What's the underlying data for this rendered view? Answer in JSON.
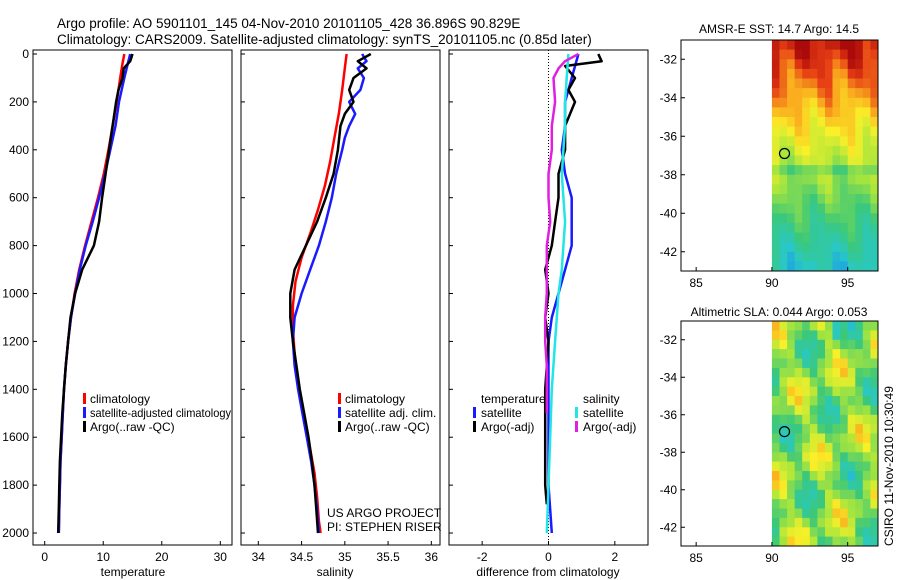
{
  "header": {
    "line1": "Argo profile: AO 5901101_145 04-Nov-2010 20101105_428 36.896S 90.829E",
    "line2": "Climatology: CARS2009. Satellite-adjusted climatology: synTS_20101105.nc (0.85d later)"
  },
  "side_credit": "CSIRO 11-Nov-2010 10:30:49",
  "project_note": {
    "line1": "US ARGO PROJECT",
    "line2": "PI: STEPHEN RISER"
  },
  "colors": {
    "red": "#ff0000",
    "blue": "#1a1aff",
    "black": "#000000",
    "cyan": "#22e5e5",
    "magenta": "#e020e0"
  },
  "chart_data": [
    {
      "type": "line",
      "xlabel": "temperature",
      "xlim": [
        -2,
        32
      ],
      "ylim": [
        0,
        2050
      ],
      "xticks": [
        0,
        10,
        20,
        30
      ],
      "yticks": [
        0,
        200,
        400,
        600,
        800,
        1000,
        1200,
        1400,
        1600,
        1800,
        2000
      ],
      "legend": [
        "climatology",
        "satellite-adjusted climatology",
        "Argo(..raw -QC)"
      ],
      "series": [
        {
          "color": "red",
          "points": [
            [
              13.6,
              0
            ],
            [
              13.3,
              40
            ],
            [
              12.9,
              100
            ],
            [
              12.3,
              200
            ],
            [
              11.6,
              300
            ],
            [
              10.9,
              400
            ],
            [
              10.1,
              500
            ],
            [
              9.1,
              600
            ],
            [
              8.0,
              700
            ],
            [
              6.9,
              800
            ],
            [
              5.9,
              900
            ],
            [
              5.1,
              1000
            ],
            [
              4.5,
              1100
            ],
            [
              4.0,
              1200
            ],
            [
              3.6,
              1300
            ],
            [
              3.3,
              1400
            ],
            [
              3.1,
              1500
            ],
            [
              2.9,
              1600
            ],
            [
              2.7,
              1700
            ],
            [
              2.6,
              1800
            ],
            [
              2.5,
              1900
            ],
            [
              2.4,
              2000
            ]
          ]
        },
        {
          "color": "blue",
          "points": [
            [
              14.6,
              0
            ],
            [
              14.2,
              40
            ],
            [
              13.6,
              100
            ],
            [
              12.7,
              200
            ],
            [
              12.1,
              300
            ],
            [
              11.2,
              400
            ],
            [
              10.3,
              500
            ],
            [
              9.3,
              600
            ],
            [
              8.2,
              700
            ],
            [
              7.0,
              800
            ],
            [
              6.0,
              900
            ],
            [
              5.2,
              1000
            ],
            [
              4.5,
              1100
            ],
            [
              4.0,
              1200
            ],
            [
              3.6,
              1300
            ],
            [
              3.3,
              1400
            ],
            [
              3.1,
              1500
            ],
            [
              2.9,
              1600
            ],
            [
              2.7,
              1700
            ],
            [
              2.6,
              1800
            ],
            [
              2.5,
              1900
            ],
            [
              2.4,
              2000
            ]
          ]
        },
        {
          "color": "black",
          "points": [
            [
              15.0,
              0
            ],
            [
              14.6,
              30
            ],
            [
              13.5,
              60
            ],
            [
              13.3,
              100
            ],
            [
              12.6,
              150
            ],
            [
              12.2,
              200
            ],
            [
              11.6,
              300
            ],
            [
              11.0,
              400
            ],
            [
              10.4,
              500
            ],
            [
              9.8,
              600
            ],
            [
              9.3,
              700
            ],
            [
              8.4,
              800
            ],
            [
              6.4,
              900
            ],
            [
              5.2,
              1000
            ],
            [
              4.4,
              1100
            ],
            [
              4.0,
              1200
            ],
            [
              3.6,
              1300
            ],
            [
              3.3,
              1400
            ],
            [
              3.0,
              1500
            ],
            [
              2.8,
              1600
            ],
            [
              2.6,
              1700
            ],
            [
              2.5,
              1800
            ],
            [
              2.4,
              1900
            ],
            [
              2.3,
              2000
            ]
          ]
        }
      ]
    },
    {
      "type": "line",
      "xlabel": "salinity",
      "xlim": [
        33.8,
        36.1
      ],
      "ylim": [
        0,
        2050
      ],
      "xticks": [
        34,
        34.5,
        35,
        35.5,
        36
      ],
      "legend": [
        "climatology",
        "satellite adj. clim.",
        "Argo(..raw -QC)"
      ],
      "series": [
        {
          "color": "red",
          "points": [
            [
              35.02,
              0
            ],
            [
              35.0,
              60
            ],
            [
              34.97,
              150
            ],
            [
              34.93,
              250
            ],
            [
              34.88,
              350
            ],
            [
              34.83,
              450
            ],
            [
              34.77,
              550
            ],
            [
              34.69,
              650
            ],
            [
              34.6,
              750
            ],
            [
              34.5,
              850
            ],
            [
              34.43,
              950
            ],
            [
              34.4,
              1050
            ],
            [
              34.4,
              1150
            ],
            [
              34.42,
              1250
            ],
            [
              34.45,
              1350
            ],
            [
              34.5,
              1450
            ],
            [
              34.55,
              1550
            ],
            [
              34.6,
              1650
            ],
            [
              34.65,
              1750
            ],
            [
              34.68,
              1850
            ],
            [
              34.7,
              1950
            ],
            [
              34.72,
              2000
            ]
          ]
        },
        {
          "color": "blue",
          "points": [
            [
              35.2,
              0
            ],
            [
              35.25,
              30
            ],
            [
              35.15,
              60
            ],
            [
              35.22,
              100
            ],
            [
              35.18,
              150
            ],
            [
              35.05,
              200
            ],
            [
              35.12,
              250
            ],
            [
              35.05,
              300
            ],
            [
              35.0,
              350
            ],
            [
              34.97,
              400
            ],
            [
              34.9,
              500
            ],
            [
              34.85,
              600
            ],
            [
              34.78,
              700
            ],
            [
              34.7,
              800
            ],
            [
              34.6,
              900
            ],
            [
              34.5,
              1000
            ],
            [
              34.42,
              1100
            ],
            [
              34.4,
              1200
            ],
            [
              34.42,
              1300
            ],
            [
              34.46,
              1400
            ],
            [
              34.51,
              1500
            ],
            [
              34.56,
              1600
            ],
            [
              34.61,
              1700
            ],
            [
              34.65,
              1800
            ],
            [
              34.68,
              1900
            ],
            [
              34.7,
              2000
            ]
          ]
        },
        {
          "color": "black",
          "points": [
            [
              35.3,
              0
            ],
            [
              35.15,
              30
            ],
            [
              35.25,
              60
            ],
            [
              35.1,
              100
            ],
            [
              35.05,
              150
            ],
            [
              35.1,
              200
            ],
            [
              35.0,
              250
            ],
            [
              34.95,
              300
            ],
            [
              34.92,
              400
            ],
            [
              34.87,
              500
            ],
            [
              34.78,
              600
            ],
            [
              34.68,
              700
            ],
            [
              34.55,
              800
            ],
            [
              34.42,
              900
            ],
            [
              34.37,
              1000
            ],
            [
              34.37,
              1100
            ],
            [
              34.4,
              1200
            ],
            [
              34.44,
              1300
            ],
            [
              34.48,
              1400
            ],
            [
              34.53,
              1500
            ],
            [
              34.58,
              1600
            ],
            [
              34.62,
              1700
            ],
            [
              34.65,
              1800
            ],
            [
              34.67,
              1900
            ],
            [
              34.69,
              2000
            ]
          ]
        }
      ]
    },
    {
      "type": "line",
      "xlabel": "difference from climatology",
      "xlim": [
        -3,
        3
      ],
      "ylim": [
        0,
        2050
      ],
      "xticks": [
        -2,
        0,
        2
      ],
      "legend_groups": [
        {
          "title": "temperature",
          "items": [
            "satellite",
            "Argo(-adj)"
          ]
        },
        {
          "title": "salinity",
          "items": [
            "satellite",
            "Argo(-adj)"
          ]
        }
      ],
      "series": [
        {
          "color": "blue",
          "points": [
            [
              0.9,
              0
            ],
            [
              0.7,
              100
            ],
            [
              0.5,
              200
            ],
            [
              0.5,
              300
            ],
            [
              0.4,
              400
            ],
            [
              0.5,
              500
            ],
            [
              0.7,
              600
            ],
            [
              0.7,
              700
            ],
            [
              0.7,
              800
            ],
            [
              0.5,
              900
            ],
            [
              0.3,
              1000
            ],
            [
              0.1,
              1100
            ],
            [
              0.0,
              1200
            ],
            [
              0.0,
              1400
            ],
            [
              0.0,
              1600
            ],
            [
              0.0,
              1800
            ],
            [
              0.1,
              2000
            ]
          ]
        },
        {
          "color": "black",
          "points": [
            [
              1.5,
              0
            ],
            [
              1.6,
              30
            ],
            [
              0.5,
              50
            ],
            [
              0.8,
              100
            ],
            [
              0.6,
              150
            ],
            [
              0.8,
              200
            ],
            [
              0.5,
              300
            ],
            [
              0.5,
              400
            ],
            [
              0.3,
              500
            ],
            [
              0.3,
              600
            ],
            [
              0.2,
              700
            ],
            [
              0.1,
              800
            ],
            [
              -0.1,
              900
            ],
            [
              0.0,
              1000
            ],
            [
              -0.1,
              1100
            ],
            [
              0.0,
              1200
            ],
            [
              -0.1,
              1400
            ],
            [
              -0.1,
              1600
            ],
            [
              -0.1,
              1800
            ],
            [
              -0.05,
              1880
            ]
          ]
        },
        {
          "color": "cyan",
          "points": [
            [
              0.6,
              0
            ],
            [
              0.55,
              100
            ],
            [
              0.5,
              200
            ],
            [
              0.5,
              300
            ],
            [
              0.45,
              400
            ],
            [
              0.4,
              500
            ],
            [
              0.45,
              600
            ],
            [
              0.5,
              700
            ],
            [
              0.45,
              800
            ],
            [
              0.4,
              900
            ],
            [
              0.3,
              1000
            ],
            [
              0.25,
              1100
            ],
            [
              0.2,
              1200
            ],
            [
              0.1,
              1400
            ],
            [
              0.05,
              1600
            ],
            [
              0.0,
              1800
            ],
            [
              -0.05,
              2000
            ]
          ]
        },
        {
          "color": "magenta",
          "points": [
            [
              0.9,
              0
            ],
            [
              0.5,
              30
            ],
            [
              0.3,
              60
            ],
            [
              0.15,
              100
            ],
            [
              0.2,
              200
            ],
            [
              0.1,
              300
            ],
            [
              0.1,
              400
            ],
            [
              0.0,
              500
            ],
            [
              0.0,
              600
            ],
            [
              0.05,
              700
            ],
            [
              -0.05,
              800
            ],
            [
              -0.05,
              900
            ],
            [
              -0.05,
              1000
            ],
            [
              -0.1,
              1100
            ],
            [
              -0.1,
              1200
            ],
            [
              -0.05,
              1300
            ],
            [
              -0.05,
              1400
            ],
            [
              -0.05,
              1500
            ]
          ]
        }
      ]
    },
    {
      "type": "heatmap",
      "title": "AMSR-E SST: 14.7 Argo: 14.5",
      "xlim": [
        84,
        97
      ],
      "ylim": [
        -43,
        -31
      ],
      "xticks": [
        85,
        90,
        95
      ],
      "yticks": [
        -32,
        -34,
        -36,
        -38,
        -40,
        -42
      ],
      "data_extent_lon": [
        90,
        97
      ],
      "argo_position": [
        90.829,
        -36.896
      ]
    },
    {
      "type": "heatmap",
      "title": "Altimetric SLA: 0.044 Argo: 0.053",
      "xlim": [
        84,
        97
      ],
      "ylim": [
        -43,
        -31
      ],
      "xticks": [
        85,
        90,
        95
      ],
      "yticks": [
        -32,
        -34,
        -36,
        -38,
        -40,
        -42
      ],
      "data_extent_lon": [
        90,
        97
      ],
      "argo_position": [
        90.829,
        -36.896
      ]
    }
  ]
}
